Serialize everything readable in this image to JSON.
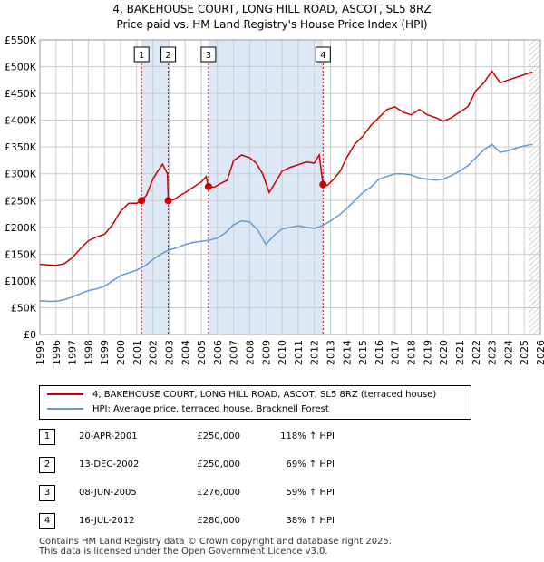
{
  "title_line1": "4, BAKEHOUSE COURT, LONG HILL ROAD, ASCOT, SL5 8RZ",
  "title_line2": "Price paid vs. HM Land Registry's House Price Index (HPI)",
  "colors": {
    "property": "#cc0000",
    "hpi": "#6699cc",
    "band": "#dde8f7",
    "grid": "#cccccc"
  },
  "chart_data": {
    "type": "line",
    "title": "Price paid vs. HM Land Registry's House Price Index (HPI)",
    "xlabel": "",
    "ylabel": "",
    "xlim": [
      1995,
      2026
    ],
    "ylim": [
      0,
      550000
    ],
    "y_ticks": [
      0,
      50000,
      100000,
      150000,
      200000,
      250000,
      300000,
      350000,
      400000,
      450000,
      500000,
      550000
    ],
    "y_tick_labels": [
      "£0",
      "£50K",
      "£100K",
      "£150K",
      "£200K",
      "£250K",
      "£300K",
      "£350K",
      "£400K",
      "£450K",
      "£500K",
      "£550K"
    ],
    "x_ticks": [
      1995,
      1996,
      1997,
      1998,
      1999,
      2000,
      2001,
      2002,
      2003,
      2004,
      2005,
      2006,
      2007,
      2008,
      2009,
      2010,
      2011,
      2012,
      2013,
      2014,
      2015,
      2016,
      2017,
      2018,
      2019,
      2020,
      2021,
      2022,
      2023,
      2024,
      2025,
      2026
    ],
    "grid": true,
    "shaded_bands": [
      [
        2001.3,
        2002.95
      ],
      [
        2005.44,
        2012.54
      ]
    ],
    "forecast_start": 2025.3,
    "series": [
      {
        "name": "4, BAKEHOUSE COURT, LONG HILL ROAD, ASCOT, SL5 8RZ (terraced house)",
        "color": "#cc0000",
        "x": [
          1995,
          1995.5,
          1996,
          1996.5,
          1997,
          1997.5,
          1998,
          1998.5,
          1999,
          1999.5,
          2000,
          2000.5,
          2001,
          2001.3,
          2001.6,
          2002,
          2002.3,
          2002.6,
          2002.9,
          2002.95,
          2003.3,
          2003.7,
          2004,
          2004.5,
          2005,
          2005.3,
          2005.44,
          2005.8,
          2006.2,
          2006.6,
          2007,
          2007.5,
          2008,
          2008.4,
          2008.8,
          2009.2,
          2009.6,
          2010,
          2010.5,
          2011,
          2011.5,
          2012,
          2012.3,
          2012.54,
          2012.8,
          2013.2,
          2013.6,
          2014,
          2014.5,
          2015,
          2015.5,
          2016,
          2016.5,
          2017,
          2017.5,
          2018,
          2018.5,
          2019,
          2019.5,
          2020,
          2020.5,
          2021,
          2021.5,
          2022,
          2022.5,
          2023,
          2023.5,
          2024,
          2024.5,
          2025,
          2025.3,
          2025.5
        ],
        "values": [
          131000,
          130000,
          129000,
          132000,
          143000,
          160000,
          175000,
          182000,
          187000,
          205000,
          230000,
          245000,
          245000,
          250000,
          260000,
          290000,
          305000,
          318000,
          300000,
          250000,
          252000,
          260000,
          265000,
          275000,
          285000,
          295000,
          276000,
          275000,
          282000,
          288000,
          325000,
          335000,
          330000,
          320000,
          300000,
          265000,
          285000,
          305000,
          312000,
          317000,
          322000,
          320000,
          335000,
          280000,
          278000,
          290000,
          305000,
          330000,
          355000,
          370000,
          390000,
          405000,
          420000,
          425000,
          415000,
          410000,
          420000,
          410000,
          405000,
          398000,
          405000,
          415000,
          425000,
          455000,
          470000,
          492000,
          470000,
          475000,
          480000,
          485000,
          488000,
          490000
        ]
      },
      {
        "name": "HPI: Average price, terraced house, Bracknell Forest",
        "color": "#6699cc",
        "x": [
          1995,
          1995.5,
          1996,
          1996.5,
          1997,
          1997.5,
          1998,
          1998.5,
          1999,
          1999.5,
          2000,
          2000.5,
          2001,
          2001.5,
          2002,
          2002.5,
          2003,
          2003.5,
          2004,
          2004.5,
          2005,
          2005.5,
          2006,
          2006.5,
          2007,
          2007.5,
          2008,
          2008.5,
          2009,
          2009.5,
          2010,
          2010.5,
          2011,
          2011.5,
          2012,
          2012.5,
          2013,
          2013.5,
          2014,
          2014.5,
          2015,
          2015.5,
          2016,
          2016.5,
          2017,
          2017.5,
          2018,
          2018.5,
          2019,
          2019.5,
          2020,
          2020.5,
          2021,
          2021.5,
          2022,
          2022.5,
          2023,
          2023.5,
          2024,
          2024.5,
          2025,
          2025.5
        ],
        "values": [
          63000,
          62000,
          62000,
          65000,
          70000,
          76000,
          82000,
          85000,
          90000,
          100000,
          110000,
          115000,
          120000,
          128000,
          140000,
          150000,
          158000,
          162000,
          168000,
          172000,
          174000,
          176000,
          180000,
          190000,
          205000,
          212000,
          210000,
          195000,
          168000,
          185000,
          197000,
          200000,
          203000,
          200000,
          198000,
          203000,
          212000,
          222000,
          235000,
          250000,
          265000,
          275000,
          290000,
          295000,
          300000,
          300000,
          298000,
          292000,
          290000,
          288000,
          290000,
          297000,
          305000,
          315000,
          330000,
          345000,
          355000,
          340000,
          343000,
          348000,
          352000,
          355000
        ]
      }
    ],
    "sales": [
      {
        "label": "1",
        "x": 2001.3,
        "y": 250000
      },
      {
        "label": "2",
        "x": 2002.95,
        "y": 250000
      },
      {
        "label": "3",
        "x": 2005.44,
        "y": 276000
      },
      {
        "label": "4",
        "x": 2012.54,
        "y": 280000
      }
    ]
  },
  "legend": {
    "property": "4, BAKEHOUSE COURT, LONG HILL ROAD, ASCOT, SL5 8RZ (terraced house)",
    "hpi": "HPI: Average price, terraced house, Bracknell Forest"
  },
  "transactions": [
    {
      "num": "1",
      "date": "20-APR-2001",
      "price": "£250,000",
      "hpi": "118% ↑ HPI"
    },
    {
      "num": "2",
      "date": "13-DEC-2002",
      "price": "£250,000",
      "hpi": "69% ↑ HPI"
    },
    {
      "num": "3",
      "date": "08-JUN-2005",
      "price": "£276,000",
      "hpi": "59% ↑ HPI"
    },
    {
      "num": "4",
      "date": "16-JUL-2012",
      "price": "£280,000",
      "hpi": "38% ↑ HPI"
    }
  ],
  "footer_line1": "Contains HM Land Registry data © Crown copyright and database right 2025.",
  "footer_line2": "This data is licensed under the Open Government Licence v3.0."
}
